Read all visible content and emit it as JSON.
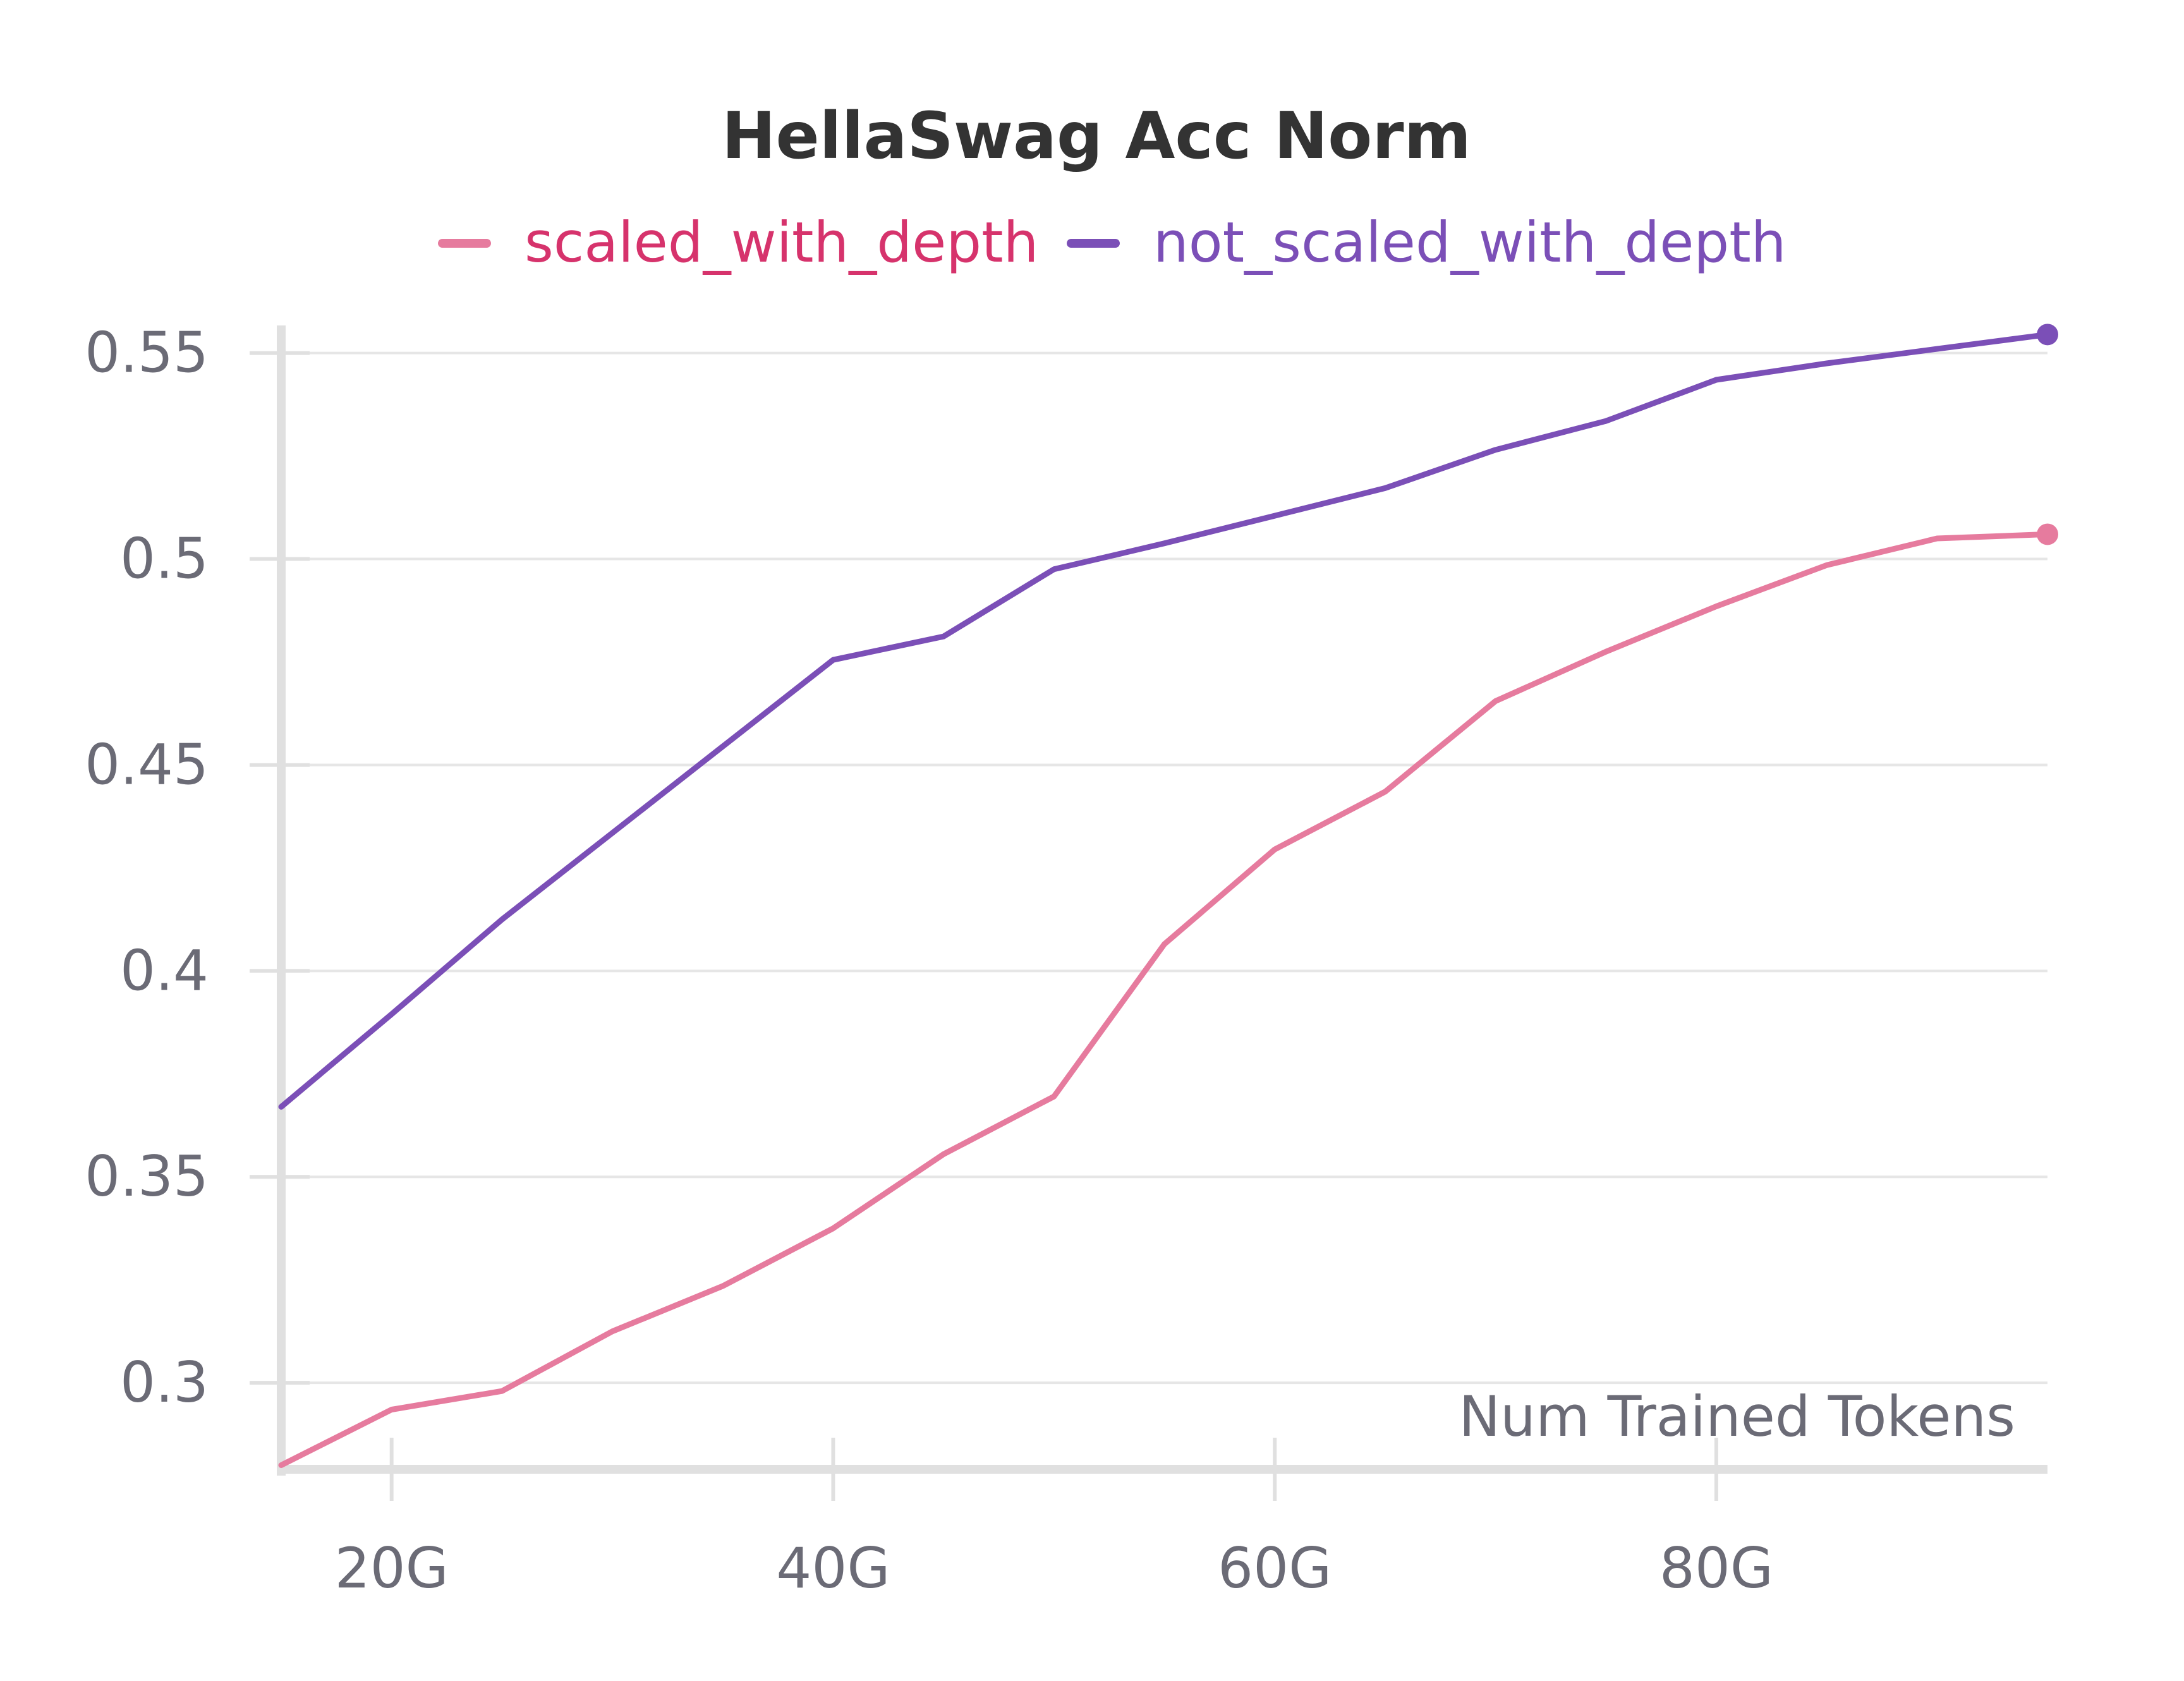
{
  "chart_data": {
    "type": "line",
    "title": "HellaSwag Acc Norm",
    "xlabel": "Num Trained Tokens",
    "ylabel": "",
    "legend_position": "top-center",
    "grid": true,
    "xlim": [
      15,
      95
    ],
    "ylim": [
      0.279,
      0.559
    ],
    "x_ticks": [
      20,
      40,
      60,
      80
    ],
    "x_tick_labels": [
      "20G",
      "40G",
      "60G",
      "80G"
    ],
    "y_ticks": [
      0.3,
      0.35,
      0.4,
      0.45,
      0.5,
      0.55
    ],
    "y_tick_labels": [
      "0.3",
      "0.35",
      "0.4",
      "0.45",
      "0.5",
      "0.55"
    ],
    "series": [
      {
        "name": "scaled_with_depth",
        "color": "#E67B9E",
        "legend_text_color": "#D6336C",
        "x": [
          15,
          20,
          25,
          30,
          35,
          40,
          45,
          50,
          55,
          60,
          65,
          70,
          75,
          80,
          85,
          90,
          95
        ],
        "y": [
          0.28,
          0.2935,
          0.298,
          0.3125,
          0.3235,
          0.3375,
          0.3555,
          0.3695,
          0.4065,
          0.4295,
          0.4435,
          0.4655,
          0.4775,
          0.4885,
          0.4985,
          0.505,
          0.506
        ]
      },
      {
        "name": "not_scaled_with_depth",
        "color": "#7B4FB7",
        "legend_text_color": "#7B4FB7",
        "x": [
          15,
          20,
          25,
          30,
          35,
          40,
          45,
          50,
          55,
          60,
          65,
          70,
          75,
          80,
          85,
          90,
          95
        ],
        "y": [
          0.367,
          0.3895,
          0.4125,
          0.4335,
          0.4545,
          0.4755,
          0.4812,
          0.4975,
          0.5038,
          0.5105,
          0.5172,
          0.5265,
          0.5335,
          0.5435,
          0.5475,
          0.551,
          0.5545
        ]
      }
    ]
  }
}
